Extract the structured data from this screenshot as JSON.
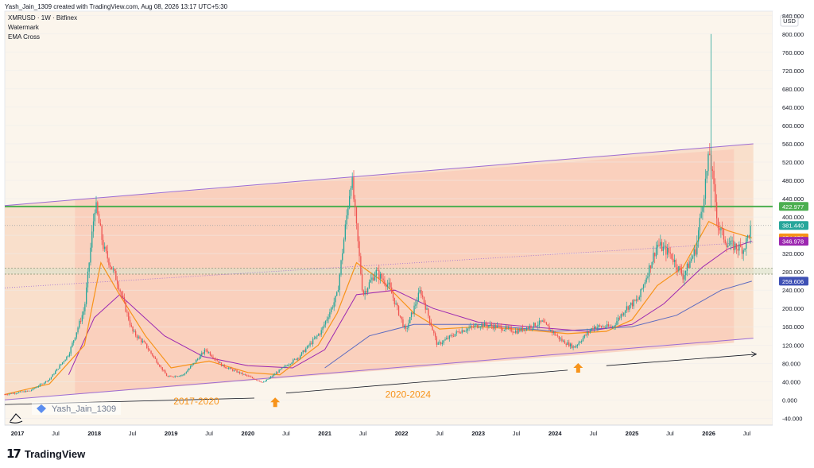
{
  "header": {
    "caption": "Yash_Jain_1309 created with TradingView.com, Aug 08, 2026 13:17 UTC+5:30"
  },
  "legend": {
    "symbol": "XMRUSD · 1W · Bitfinex",
    "line2": "Watermark",
    "line3": "EMA Cross"
  },
  "footer": {
    "brand": "TradingView"
  },
  "colors": {
    "up": "#26a69a",
    "down": "#ef5350",
    "channel_line": "#9c6cd4",
    "fill_peach": "#f8ddc8",
    "fill_salmon": "#f9cbb8",
    "ema_fast": "#f7931a",
    "ema_slow": "#9c27b0",
    "ema_long": "#5c6bc0",
    "resistance": "#4caf50",
    "arrow": "#f7931a"
  },
  "chart_data": {
    "type": "candlestick",
    "title": "XMRUSD · 1W · Bitfinex",
    "currency": "USD",
    "y_ticks": [
      -40,
      0,
      40,
      80,
      120,
      160,
      200,
      240,
      280,
      320,
      360,
      400,
      440,
      480,
      520,
      560,
      600,
      640,
      680,
      720,
      760,
      800,
      840
    ],
    "ylim": [
      -55,
      850
    ],
    "x_labels": [
      "2017",
      "Jul",
      "2018",
      "Jul",
      "2019",
      "Jul",
      "2020",
      "Jul",
      "2021",
      "Jul",
      "2022",
      "Jul",
      "2023",
      "Jul",
      "2024",
      "Jul",
      "2025",
      "Jul",
      "2026",
      "Jul"
    ],
    "price_path": [
      [
        "2016-11-01",
        12
      ],
      [
        "2017-03-01",
        20
      ],
      [
        "2017-06-01",
        45
      ],
      [
        "2017-09-01",
        100
      ],
      [
        "2017-11-15",
        200
      ],
      [
        "2018-01-05",
        430
      ],
      [
        "2018-02-15",
        330
      ],
      [
        "2018-04-20",
        260
      ],
      [
        "2018-07-01",
        150
      ],
      [
        "2018-09-01",
        120
      ],
      [
        "2018-12-15",
        50
      ],
      [
        "2019-03-01",
        55
      ],
      [
        "2019-06-15",
        110
      ],
      [
        "2019-09-01",
        75
      ],
      [
        "2019-12-15",
        55
      ],
      [
        "2020-03-15",
        38
      ],
      [
        "2020-06-01",
        65
      ],
      [
        "2020-09-01",
        95
      ],
      [
        "2020-12-15",
        150
      ],
      [
        "2021-03-01",
        230
      ],
      [
        "2021-05-08",
        490
      ],
      [
        "2021-07-01",
        230
      ],
      [
        "2021-09-01",
        280
      ],
      [
        "2021-11-01",
        250
      ],
      [
        "2022-01-20",
        150
      ],
      [
        "2022-04-01",
        240
      ],
      [
        "2022-06-20",
        120
      ],
      [
        "2022-10-01",
        150
      ],
      [
        "2023-01-15",
        165
      ],
      [
        "2023-04-01",
        160
      ],
      [
        "2023-07-01",
        150
      ],
      [
        "2023-11-01",
        170
      ],
      [
        "2024-02-01",
        130
      ],
      [
        "2024-04-01",
        115
      ],
      [
        "2024-07-01",
        160
      ],
      [
        "2024-10-01",
        160
      ],
      [
        "2024-12-01",
        200
      ],
      [
        "2025-02-01",
        220
      ],
      [
        "2025-05-01",
        340
      ],
      [
        "2025-07-01",
        320
      ],
      [
        "2025-09-01",
        270
      ],
      [
        "2025-11-01",
        330
      ],
      [
        "2026-01-05",
        540
      ],
      [
        "2026-02-15",
        380
      ],
      [
        "2026-04-01",
        340
      ],
      [
        "2026-06-15",
        330
      ],
      [
        "2026-07-25",
        381.44
      ]
    ],
    "spike_2026": {
      "date": "2026-01-12",
      "high": 800
    },
    "ema_fast_path": [
      [
        "2016-11-01",
        12
      ],
      [
        "2017-06-01",
        35
      ],
      [
        "2017-11-15",
        120
      ],
      [
        "2018-02-01",
        300
      ],
      [
        "2018-05-01",
        230
      ],
      [
        "2018-09-01",
        140
      ],
      [
        "2019-01-01",
        70
      ],
      [
        "2019-07-01",
        85
      ],
      [
        "2020-01-01",
        60
      ],
      [
        "2020-06-01",
        55
      ],
      [
        "2020-12-01",
        120
      ],
      [
        "2021-03-01",
        190
      ],
      [
        "2021-06-01",
        300
      ],
      [
        "2021-10-01",
        260
      ],
      [
        "2022-03-01",
        190
      ],
      [
        "2022-07-01",
        155
      ],
      [
        "2023-01-01",
        160
      ],
      [
        "2023-07-01",
        155
      ],
      [
        "2024-03-01",
        145
      ],
      [
        "2024-09-01",
        150
      ],
      [
        "2025-01-01",
        175
      ],
      [
        "2025-05-01",
        250
      ],
      [
        "2025-09-01",
        290
      ],
      [
        "2026-01-01",
        390
      ],
      [
        "2026-04-01",
        370
      ],
      [
        "2026-07-25",
        354.276
      ]
    ],
    "ema_slow_path": [
      [
        "2017-09-01",
        55
      ],
      [
        "2018-01-01",
        180
      ],
      [
        "2018-05-01",
        230
      ],
      [
        "2018-12-01",
        140
      ],
      [
        "2019-06-01",
        95
      ],
      [
        "2020-01-01",
        75
      ],
      [
        "2020-08-01",
        70
      ],
      [
        "2021-01-01",
        110
      ],
      [
        "2021-06-01",
        230
      ],
      [
        "2021-12-01",
        240
      ],
      [
        "2022-06-01",
        200
      ],
      [
        "2023-01-01",
        170
      ],
      [
        "2023-09-01",
        160
      ],
      [
        "2024-06-01",
        150
      ],
      [
        "2025-01-01",
        165
      ],
      [
        "2025-06-01",
        210
      ],
      [
        "2025-12-01",
        290
      ],
      [
        "2026-04-01",
        330
      ],
      [
        "2026-07-25",
        346.978
      ]
    ],
    "ema_long_path": [
      [
        "2021-01-01",
        70
      ],
      [
        "2021-08-01",
        140
      ],
      [
        "2022-03-01",
        165
      ],
      [
        "2023-01-01",
        165
      ],
      [
        "2024-01-01",
        150
      ],
      [
        "2025-01-01",
        160
      ],
      [
        "2025-08-01",
        185
      ],
      [
        "2026-03-01",
        240
      ],
      [
        "2026-07-25",
        259.606
      ]
    ],
    "channel": {
      "upper": [
        [
          "2016-11-01",
          425
        ],
        [
          "2026-08-01",
          560
        ]
      ],
      "lower": [
        [
          "2016-11-01",
          0
        ],
        [
          "2026-08-01",
          135
        ]
      ],
      "dotted_mid": [
        [
          "2016-11-01",
          245
        ],
        [
          "2026-08-01",
          345
        ]
      ]
    },
    "horizontal_levels": {
      "resistance": 422.977,
      "band_top": 288,
      "band_bottom": 275,
      "grey_dotted": 381.44
    },
    "price_labels": [
      {
        "value": 422.977,
        "text": "422.977",
        "color": "#4caf50"
      },
      {
        "value": 381.44,
        "text": "381.440",
        "color": "#26a69a"
      },
      {
        "value": 354.276,
        "text": "354.276",
        "color": "#f7931a"
      },
      {
        "value": 346.978,
        "text": "346.978",
        "color": "#9c27b0"
      },
      {
        "value": 259.606,
        "text": "259.606",
        "color": "#3f51b5"
      }
    ],
    "annotations": [
      {
        "text": "2017-2020",
        "date": "2019-05-01",
        "value": -10
      },
      {
        "text": "2020-2024",
        "date": "2022-02-01",
        "value": 5
      }
    ],
    "cycle_arrows": [
      {
        "date": "2020-05-10",
        "value": -5
      },
      {
        "date": "2024-04-20",
        "value": 70
      }
    ],
    "trend_segments": [
      [
        [
          "2016-11-01",
          -10
        ],
        [
          "2020-02-01",
          4
        ]
      ],
      [
        [
          "2020-07-01",
          15
        ],
        [
          "2024-03-01",
          65
        ]
      ],
      [
        [
          "2024-09-01",
          75
        ],
        [
          "2026-08-15",
          100
        ]
      ]
    ],
    "watermark_text": "Yash_Jain_1309"
  }
}
